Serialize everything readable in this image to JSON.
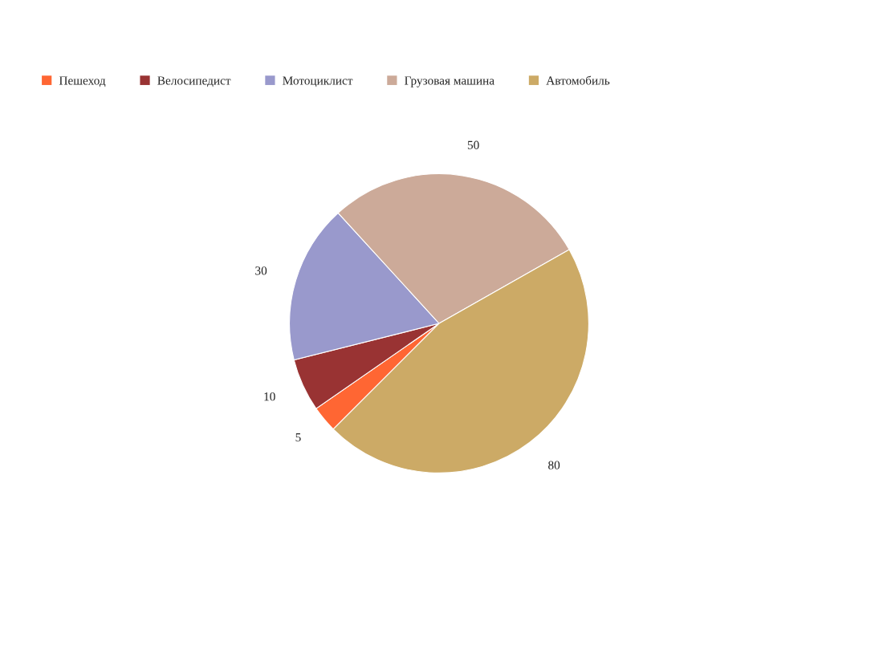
{
  "chart_data": {
    "type": "pie",
    "categories": [
      "Пешеход",
      "Велосипедист",
      "Мотоциклист",
      "Грузовая машина",
      "Автомобиль"
    ],
    "values": [
      5,
      10,
      30,
      50,
      80
    ],
    "colors": [
      "#ff6633",
      "#993333",
      "#9999cc",
      "#ccaa99",
      "#ccaa66"
    ],
    "data_labels": true,
    "legend": "top left"
  }
}
